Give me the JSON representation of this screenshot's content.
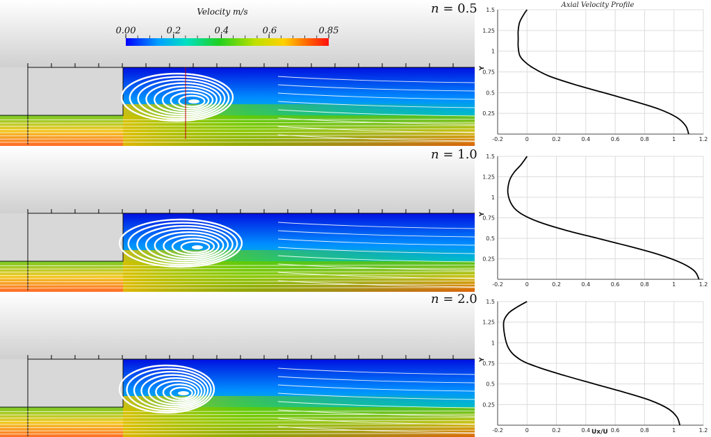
{
  "colorbar": {
    "title": "Velocity m/s",
    "ticks": [
      "0.00",
      "0.2",
      "0.4",
      "0.6",
      "0.85"
    ],
    "tick_values": [
      0.0,
      0.2,
      0.4,
      0.6,
      0.85
    ],
    "min": 0.0,
    "max": 0.85,
    "colormap": [
      "#0000ff",
      "#00a0ff",
      "#00e0c0",
      "#20d020",
      "#c0e000",
      "#ffd000",
      "#ff6000",
      "#ff1010"
    ]
  },
  "panels": [
    {
      "label_n": "n",
      "label_eq": " = ",
      "label_val": "0.5"
    },
    {
      "label_n": "n",
      "label_eq": " = ",
      "label_val": "1.0"
    },
    {
      "label_n": "n",
      "label_eq": " = ",
      "label_val": "2.0"
    }
  ],
  "chart_data": [
    {
      "type": "line",
      "title": "Axial Velocity Profile",
      "xlabel": "",
      "ylabel": "Y",
      "xlim": [
        -0.2,
        1.2
      ],
      "ylim": [
        0,
        1.5
      ],
      "xticks": [
        "-0.2",
        "0",
        "0.2",
        "0.4",
        "0.6",
        "0.8",
        "1",
        "1.2"
      ],
      "yticks": [
        "0.25",
        "0.5",
        "0.75",
        "1",
        "1.25",
        "1.5"
      ],
      "grid": true,
      "series": [
        {
          "x": [
            1.1,
            1.08,
            1.02,
            0.9,
            0.72,
            0.52,
            0.32,
            0.15,
            0.04,
            -0.02,
            -0.05,
            -0.06,
            -0.06,
            -0.06,
            -0.05,
            -0.02,
            0.0
          ],
          "y": [
            0.0,
            0.1,
            0.2,
            0.3,
            0.4,
            0.5,
            0.6,
            0.7,
            0.8,
            0.88,
            0.95,
            1.05,
            1.15,
            1.25,
            1.35,
            1.45,
            1.5
          ]
        }
      ]
    },
    {
      "type": "line",
      "title": "",
      "xlabel": "",
      "ylabel": "Y",
      "xlim": [
        -0.2,
        1.2
      ],
      "ylim": [
        0,
        1.5
      ],
      "xticks": [
        "-0.2",
        "0",
        "0.2",
        "0.4",
        "0.6",
        "0.8",
        "1",
        "1.2"
      ],
      "yticks": [
        "0.25",
        "0.5",
        "0.75",
        "1",
        "1.25",
        "1.5"
      ],
      "grid": true,
      "series": [
        {
          "x": [
            1.17,
            1.14,
            1.05,
            0.9,
            0.7,
            0.48,
            0.26,
            0.08,
            -0.04,
            -0.1,
            -0.13,
            -0.12,
            -0.09,
            -0.04,
            0.0
          ],
          "y": [
            0.0,
            0.1,
            0.2,
            0.3,
            0.4,
            0.5,
            0.6,
            0.7,
            0.8,
            0.9,
            1.05,
            1.2,
            1.3,
            1.4,
            1.5
          ]
        }
      ]
    },
    {
      "type": "line",
      "title": "",
      "xlabel": "Ux/U",
      "ylabel": "Y",
      "xlim": [
        -0.2,
        1.2
      ],
      "ylim": [
        0,
        1.5
      ],
      "xticks": [
        "-0.2",
        "0",
        "0.2",
        "0.4",
        "0.6",
        "0.8",
        "1",
        "1.2"
      ],
      "yticks": [
        "0.25",
        "0.5",
        "0.75",
        "1",
        "1.25",
        "1.5"
      ],
      "grid": true,
      "series": [
        {
          "x": [
            1.04,
            1.02,
            0.96,
            0.84,
            0.66,
            0.46,
            0.26,
            0.08,
            -0.05,
            -0.13,
            -0.16,
            -0.13,
            -0.07,
            0.0
          ],
          "y": [
            0.0,
            0.1,
            0.2,
            0.3,
            0.4,
            0.5,
            0.6,
            0.7,
            0.8,
            0.95,
            1.22,
            1.35,
            1.43,
            1.5
          ]
        }
      ]
    }
  ]
}
